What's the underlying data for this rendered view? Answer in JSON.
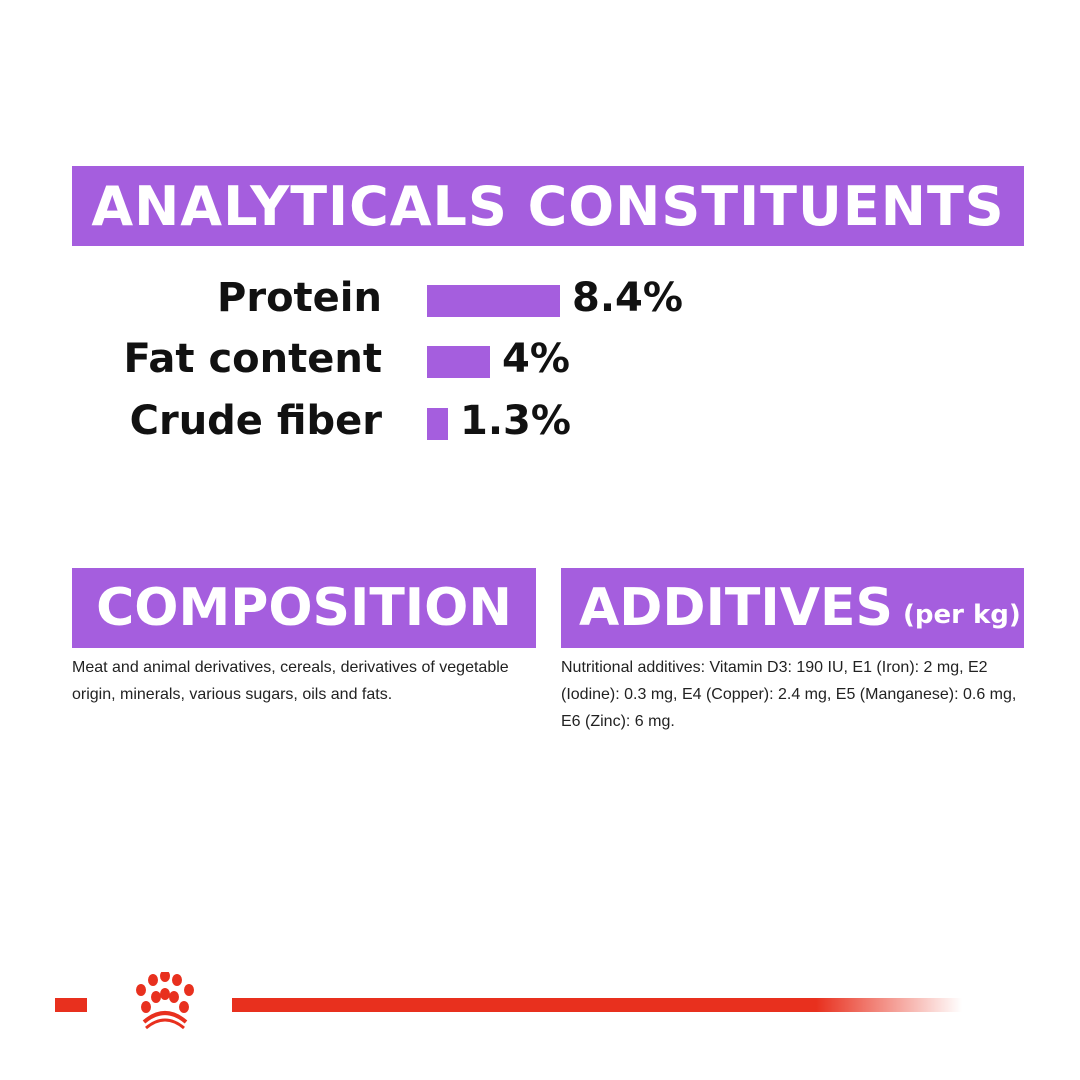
{
  "analyticals": {
    "title": "ANALYTICALS CONSTITUENTS",
    "items": [
      {
        "label": "Protein",
        "value": "8.4%",
        "percent": 8.4
      },
      {
        "label": "Fat content",
        "value": "4%",
        "percent": 4
      },
      {
        "label": "Crude fiber",
        "value": "1.3%",
        "percent": 1.3
      }
    ]
  },
  "composition": {
    "title": "COMPOSITION",
    "text": "Meat and animal derivatives, cereals, derivatives of vegetable origin, minerals, various sugars, oils and fats."
  },
  "additives": {
    "title": "ADDITIVES",
    "subtitle": "(per kg)",
    "text": "Nutritional additives: Vitamin D3: 190 IU, E1 (Iron): 2 mg, E2 (Iodine): 0.3 mg, E4 (Copper): 2.4 mg, E5 (Manganese): 0.6 mg, E6 (Zinc): 6 mg."
  },
  "colors": {
    "accent": "#a55ede",
    "brand_red": "#e8301e"
  },
  "logo": {
    "icon": "royal-canin-crown-icon"
  }
}
